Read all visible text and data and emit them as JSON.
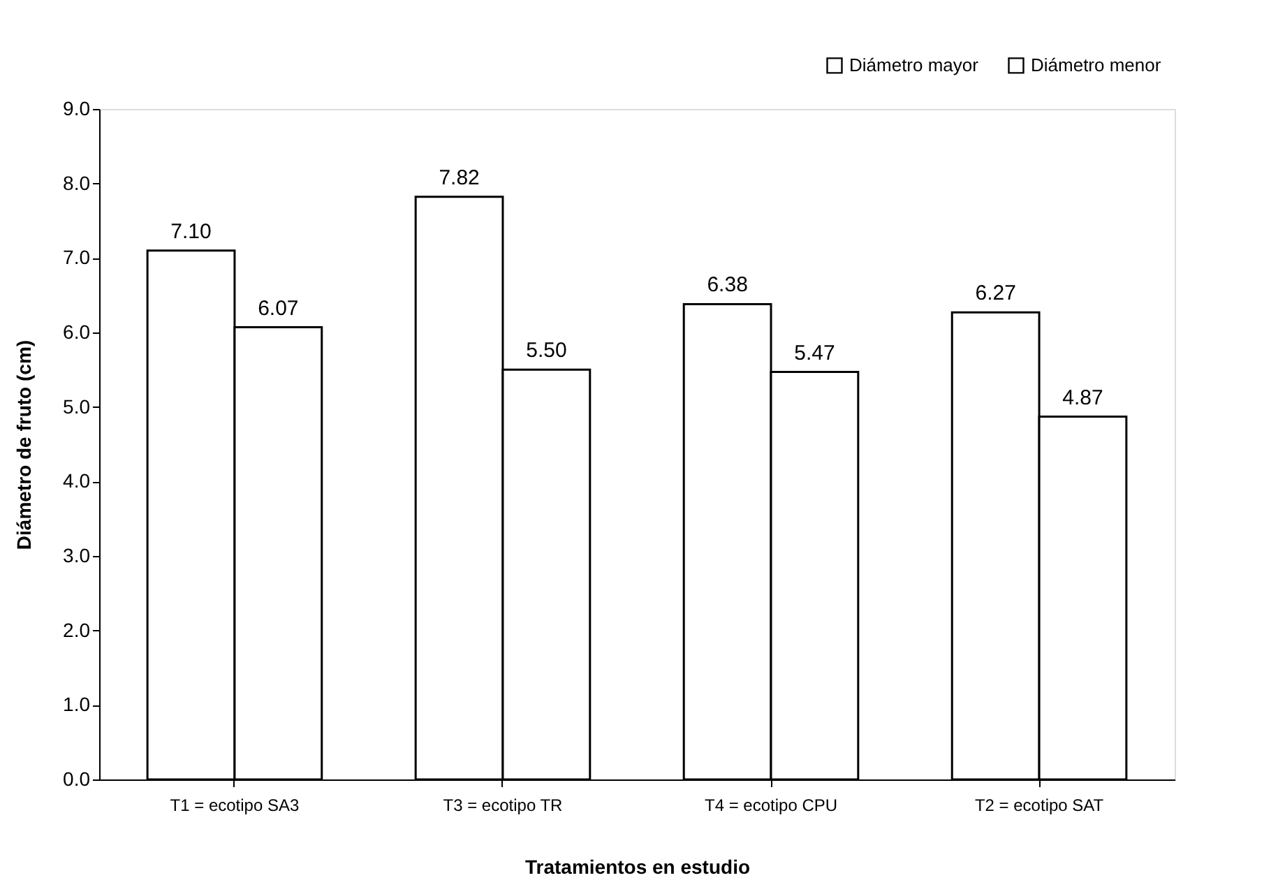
{
  "chart_data": {
    "type": "bar",
    "xlabel": "Tratamientos en estudio",
    "ylabel": "Diámetro de fruto (cm)",
    "categories": [
      "T1 = ecotipo SA3",
      "T3 = ecotipo TR",
      "T4 = ecotipo CPU",
      "T2 = ecotipo SAT"
    ],
    "series": [
      {
        "name": "Diámetro mayor",
        "color": "#ffffff",
        "values": [
          7.1,
          7.82,
          6.38,
          6.27
        ],
        "value_labels": [
          "7.10",
          "7.82",
          "6.38",
          "6.27"
        ]
      },
      {
        "name": "Diámetro menor",
        "color": "#ffffff",
        "values": [
          6.07,
          5.5,
          5.47,
          4.87
        ],
        "value_labels": [
          "6.07",
          "5.50",
          "5.47",
          "4.87"
        ]
      }
    ],
    "ylim": [
      0,
      9
    ],
    "yticks": [
      {
        "value": 0,
        "label": "0.0"
      },
      {
        "value": 1,
        "label": "1.0"
      },
      {
        "value": 2,
        "label": "2.0"
      },
      {
        "value": 3,
        "label": "3.0"
      },
      {
        "value": 4,
        "label": "4.0"
      },
      {
        "value": 5,
        "label": "5.0"
      },
      {
        "value": 6,
        "label": "6.0"
      },
      {
        "value": 7,
        "label": "7.0"
      },
      {
        "value": 8,
        "label": "8.0"
      },
      {
        "value": 9,
        "label": "9.0"
      }
    ],
    "grid": false,
    "legend": "top right"
  }
}
